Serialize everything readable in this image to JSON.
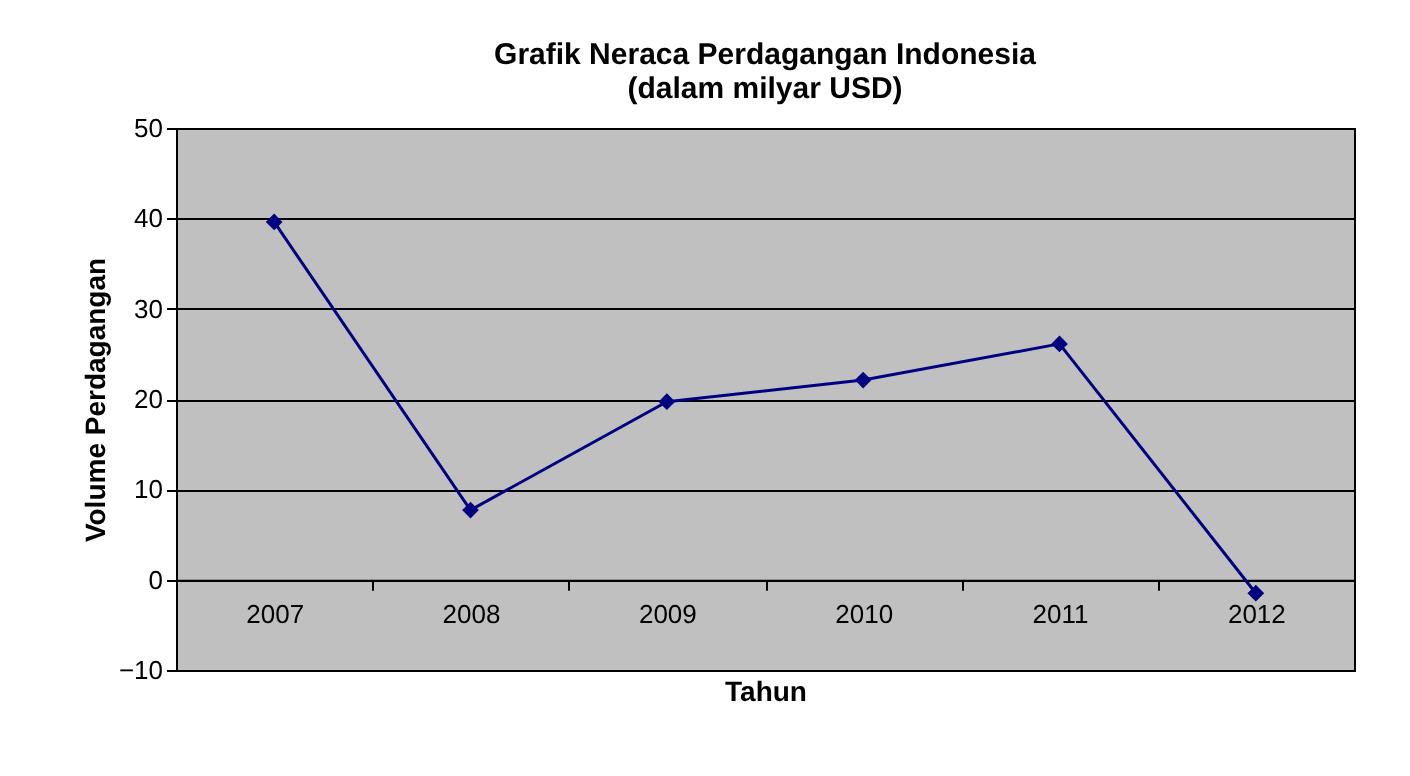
{
  "chart_data": {
    "type": "line",
    "title": "Grafik Neraca Perdagangan Indonesia\n(dalam milyar USD)",
    "xlabel": "Tahun",
    "ylabel": "Volume Perdagangan",
    "categories": [
      "2007",
      "2008",
      "2009",
      "2010",
      "2011",
      "2012"
    ],
    "series": [
      {
        "color": "#000080",
        "values": [
          39.6,
          7.7,
          19.7,
          22.1,
          26.1,
          -1.5
        ]
      }
    ],
    "ylim": [
      -10,
      50
    ],
    "yticks": [
      -10,
      0,
      10,
      20,
      30,
      40,
      50
    ],
    "grid": "y",
    "marker": "diamond",
    "line_style": "solid"
  }
}
